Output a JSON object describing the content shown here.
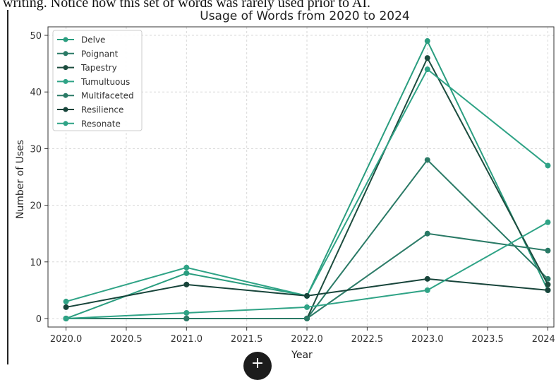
{
  "page": {
    "top_text": "writing. Notice how this set of words was rarely used prior to AI."
  },
  "fab": {
    "icon": "plus-icon",
    "label": "+"
  },
  "chart_data": {
    "type": "line",
    "title": "Usage of Words from 2020 to 2024",
    "xlabel": "Year",
    "ylabel": "Number of Uses",
    "x": [
      2020,
      2021,
      2022,
      2023,
      2024
    ],
    "xlim": [
      2019.85,
      2024.05
    ],
    "ylim": [
      -1.5,
      51.5
    ],
    "x_ticks": [
      2020.0,
      2020.5,
      2021.0,
      2021.5,
      2022.0,
      2022.5,
      2023.0,
      2023.5,
      2024.0
    ],
    "x_tick_labels": [
      "2020.0",
      "2020.5",
      "2021.0",
      "2021.5",
      "2022.0",
      "2022.5",
      "2023.0",
      "2023.5",
      "2024.0"
    ],
    "y_ticks": [
      0,
      10,
      20,
      30,
      40,
      50
    ],
    "y_tick_labels": [
      "0",
      "10",
      "20",
      "30",
      "40",
      "50"
    ],
    "grid": true,
    "legend_position": "top-left",
    "series": [
      {
        "name": "Delve",
        "color": "#2a9d7f",
        "values": [
          0,
          8,
          4,
          49,
          5
        ]
      },
      {
        "name": "Poignant",
        "color": "#2a7a66",
        "values": [
          0,
          0,
          0,
          28,
          7
        ]
      },
      {
        "name": "Tapestry",
        "color": "#1d4d3f",
        "values": [
          0,
          0,
          0,
          46,
          6
        ]
      },
      {
        "name": "Tumultuous",
        "color": "#2fa386",
        "values": [
          3,
          9,
          4,
          44,
          27
        ]
      },
      {
        "name": "Multifaceted",
        "color": "#2a7a66",
        "values": [
          0,
          0,
          0,
          15,
          12
        ]
      },
      {
        "name": "Resilience",
        "color": "#17443a",
        "values": [
          2,
          6,
          4,
          7,
          5
        ]
      },
      {
        "name": "Resonate",
        "color": "#2fa386",
        "values": [
          0,
          1,
          2,
          5,
          17
        ]
      }
    ]
  }
}
